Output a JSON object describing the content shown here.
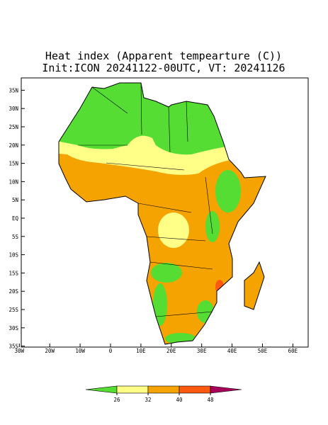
{
  "title": "Heat index (Apparent tempearture (C))",
  "subtitle": "Init:ICON 20241122-00UTC, VT: 20241126",
  "map": {
    "lon_ticks": [
      {
        "value": -30,
        "label": "30W"
      },
      {
        "value": -20,
        "label": "20W"
      },
      {
        "value": -10,
        "label": "10W"
      },
      0,
      {
        "value": 10,
        "label": "10E"
      },
      {
        "value": 20,
        "label": "20E"
      },
      {
        "value": 30,
        "label": "30E"
      },
      {
        "value": 40,
        "label": "40E"
      },
      {
        "value": 50,
        "label": "50E"
      },
      {
        "value": 60,
        "label": "60E"
      }
    ],
    "lat_ticks": [
      {
        "value": 35,
        "label": "35N"
      },
      {
        "value": 30,
        "label": "30N"
      },
      {
        "value": 25,
        "label": "25N"
      },
      {
        "value": 20,
        "label": "20N"
      },
      {
        "value": 15,
        "label": "15N"
      },
      {
        "value": 10,
        "label": "10N"
      },
      {
        "value": 5,
        "label": "5N"
      },
      {
        "value": 0,
        "label": "EQ"
      },
      {
        "value": -5,
        "label": "5S"
      },
      {
        "value": -10,
        "label": "10S"
      },
      {
        "value": -15,
        "label": "15S"
      },
      {
        "value": -20,
        "label": "20S"
      },
      {
        "value": -25,
        "label": "25S"
      },
      {
        "value": -30,
        "label": "30S"
      },
      {
        "value": -35,
        "label": "35S"
      }
    ]
  },
  "colorbar": {
    "levels": [
      26,
      32,
      40,
      48
    ],
    "colors": [
      "#55dd33",
      "#ffff88",
      "#f5a300",
      "#ff5a10",
      "#a8005a"
    ]
  }
}
